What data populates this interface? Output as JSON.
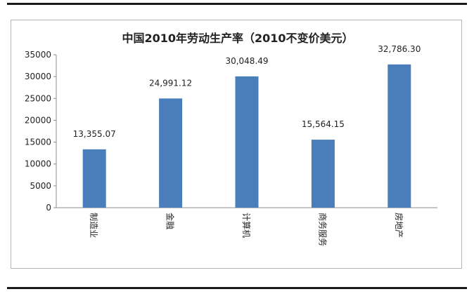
{
  "chart_data": {
    "type": "bar",
    "title": "中国2010年劳动生产率（2010不变价美元）",
    "categories": [
      "制造业",
      "金融",
      "计算机",
      "商务服务",
      "房地产"
    ],
    "values": [
      13355.07,
      24991.12,
      30048.49,
      15564.15,
      32786.3
    ],
    "value_labels": [
      "13,355.07",
      "24,991.12",
      "30,048.49",
      "15,564.15",
      "32,786.30"
    ],
    "y_ticks": [
      "0",
      "5000",
      "10000",
      "15000",
      "20000",
      "25000",
      "30000",
      "35000"
    ],
    "ylim": [
      0,
      35000
    ],
    "grid": false,
    "legend": "none",
    "bar_color": "#4a7ebb"
  }
}
